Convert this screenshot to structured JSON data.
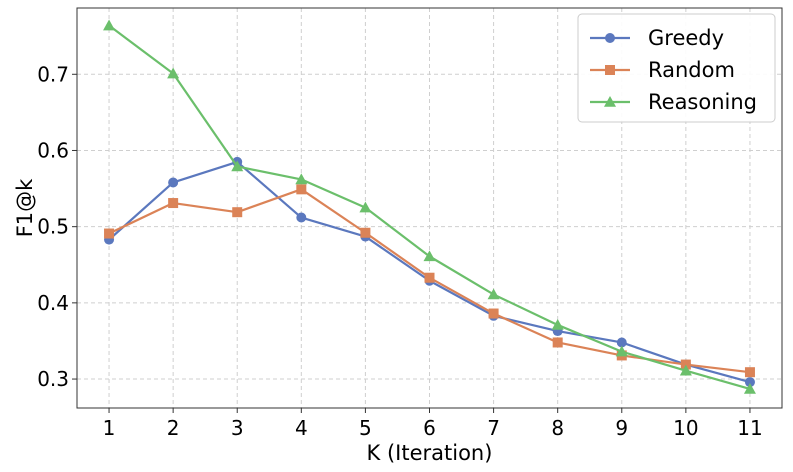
{
  "chart_data": {
    "type": "line",
    "title": "",
    "xlabel": "K (Iteration)",
    "ylabel": "F1@k",
    "x": [
      1,
      2,
      3,
      4,
      5,
      6,
      7,
      8,
      9,
      10,
      11
    ],
    "xlim": [
      0.5,
      11.5
    ],
    "ylim": [
      0.262,
      0.787
    ],
    "yticks": [
      0.3,
      0.4,
      0.5,
      0.6,
      0.7
    ],
    "ytick_labels": [
      "0.3",
      "0.4",
      "0.5",
      "0.6",
      "0.7"
    ],
    "xtick_labels": [
      "1",
      "2",
      "3",
      "4",
      "5",
      "6",
      "7",
      "8",
      "9",
      "10",
      "11"
    ],
    "grid": true,
    "legend_position": "top-right",
    "series": [
      {
        "name": "Greedy",
        "color": "#5b78be",
        "marker": "circle",
        "values": [
          0.483,
          0.558,
          0.585,
          0.512,
          0.487,
          0.429,
          0.383,
          0.363,
          0.348,
          0.319,
          0.296
        ]
      },
      {
        "name": "Random",
        "color": "#db8357",
        "marker": "square",
        "values": [
          0.491,
          0.531,
          0.519,
          0.549,
          0.492,
          0.433,
          0.386,
          0.348,
          0.331,
          0.319,
          0.309
        ]
      },
      {
        "name": "Reasoning",
        "color": "#6bbf6b",
        "marker": "triangle",
        "values": [
          0.764,
          0.701,
          0.579,
          0.562,
          0.525,
          0.461,
          0.411,
          0.371,
          0.336,
          0.311,
          0.287
        ]
      }
    ]
  }
}
